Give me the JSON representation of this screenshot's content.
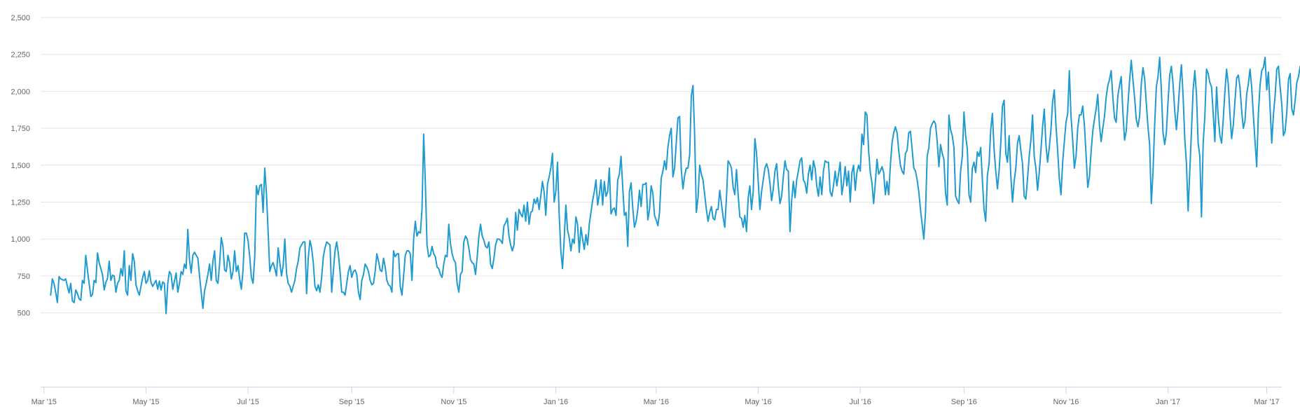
{
  "colors": {
    "series": "#1f9bcf",
    "grid": "#e6e6e6",
    "axis": "#ccd6eb",
    "label": "#666666"
  },
  "chart_data": {
    "type": "line",
    "title": "",
    "xlabel": "",
    "ylabel": "",
    "grid": true,
    "legend": "none",
    "ylim": [
      0,
      2500
    ],
    "y_ticks": [
      {
        "value": 500,
        "label": "500"
      },
      {
        "value": 750,
        "label": "750"
      },
      {
        "value": 1000,
        "label": "1,000"
      },
      {
        "value": 1250,
        "label": "1,250"
      },
      {
        "value": 1500,
        "label": "1,500"
      },
      {
        "value": 1750,
        "label": "1,750"
      },
      {
        "value": 2000,
        "label": "2,000"
      },
      {
        "value": 2250,
        "label": "2,250"
      },
      {
        "value": 2500,
        "label": "2,500"
      }
    ],
    "xlim": [
      "2015-02-27",
      "2017-03-10"
    ],
    "x_ticks": [
      {
        "date": "2015-03-01",
        "label": "Mar '15"
      },
      {
        "date": "2015-05-01",
        "label": "May '15"
      },
      {
        "date": "2015-07-01",
        "label": "Jul '15"
      },
      {
        "date": "2015-09-01",
        "label": "Sep '15"
      },
      {
        "date": "2015-11-01",
        "label": "Nov '15"
      },
      {
        "date": "2016-01-01",
        "label": "Jan '16"
      },
      {
        "date": "2016-03-01",
        "label": "Mar '16"
      },
      {
        "date": "2016-05-01",
        "label": "May '16"
      },
      {
        "date": "2016-07-01",
        "label": "Jul '16"
      },
      {
        "date": "2016-09-01",
        "label": "Sep '16"
      },
      {
        "date": "2016-11-01",
        "label": "Nov '16"
      },
      {
        "date": "2017-01-01",
        "label": "Jan '17"
      },
      {
        "date": "2017-03-01",
        "label": "Mar '17"
      }
    ],
    "series": [
      {
        "x_start": "2015-03-05",
        "x_step_days": 1,
        "values": [
          620,
          730,
          700,
          640,
          570,
          745,
          730,
          725,
          720,
          730,
          680,
          635,
          700,
          580,
          570,
          655,
          630,
          595,
          585,
          720,
          700,
          890,
          790,
          700,
          610,
          625,
          720,
          705,
          905,
          840,
          800,
          760,
          655,
          705,
          735,
          850,
          720,
          755,
          750,
          640,
          700,
          720,
          800,
          750,
          920,
          650,
          620,
          820,
          720,
          900,
          850,
          690,
          650,
          620,
          680,
          740,
          780,
          700,
          720,
          785,
          705,
          680,
          700,
          720,
          660,
          715,
          655,
          710,
          700,
          495,
          700,
          780,
          760,
          660,
          715,
          770,
          640,
          700,
          780,
          760,
          830,
          800,
          1065,
          860,
          770,
          890,
          910,
          890,
          870,
          750,
          640,
          530,
          650,
          700,
          760,
          830,
          720,
          850,
          920,
          720,
          700,
          830,
          1010,
          950,
          790,
          780,
          890,
          840,
          730,
          780,
          920,
          780,
          820,
          730,
          660,
          790,
          1040,
          1040,
          990,
          880,
          740,
          700,
          880,
          1360,
          1300,
          1360,
          1370,
          1180,
          1480,
          1310,
          1050,
          780,
          820,
          840,
          800,
          750,
          940,
          840,
          750,
          820,
          1000,
          770,
          700,
          680,
          640,
          680,
          720,
          800,
          850,
          940,
          960,
          980,
          980,
          630,
          870,
          990,
          940,
          840,
          680,
          650,
          690,
          640,
          740,
          880,
          940,
          980,
          970,
          960,
          640,
          780,
          920,
          980,
          900,
          780,
          640,
          640,
          620,
          700,
          780,
          820,
          740,
          780,
          790,
          760,
          640,
          590,
          720,
          760,
          830,
          810,
          780,
          720,
          690,
          700,
          780,
          900,
          850,
          790,
          780,
          870,
          810,
          720,
          690,
          680,
          640,
          920,
          880,
          900,
          900,
          680,
          620,
          750,
          890,
          920,
          920,
          900,
          720,
          1000,
          1120,
          1020,
          1050,
          1040,
          1200,
          1710,
          1380,
          960,
          880,
          890,
          950,
          900,
          880,
          810,
          800,
          760,
          740,
          830,
          890,
          880,
          1100,
          970,
          900,
          860,
          840,
          700,
          640,
          760,
          780,
          980,
          1020,
          1000,
          940,
          860,
          840,
          830,
          760,
          880,
          1020,
          1100,
          1020,
          990,
          950,
          940,
          980,
          830,
          800,
          870,
          960,
          1000,
          950,
          1000,
          1000,
          1100,
          1120,
          1060,
          980,
          890,
          990,
          1000,
          1060,
          1000,
          1060,
          1080,
          1090,
          1160,
          1220,
          1360,
          1250,
          1240,
          1120,
          1000,
          1020,
          960,
          1030,
          1090,
          1150,
          1020,
          920,
          840,
          740,
          860
        ]
      },
      {
        "x_start": "2015-11-28",
        "x_step_days": 1,
        "values": [
          1000,
          990,
          970,
          1090,
          1110,
          1140,
          1020,
          960,
          920,
          960,
          1180,
          1060,
          1200,
          1170,
          1150,
          1230,
          1120,
          1250,
          1100,
          1180,
          1190,
          1270,
          1240,
          1280,
          1200,
          1290,
          1390,
          1320,
          1160,
          1370,
          1420,
          1480,
          1580,
          1250,
          1320,
          1520,
          1170,
          920,
          800,
          1000,
          1230,
          1060,
          1010,
          920,
          1000,
          970,
          1150,
          1100,
          910,
          1080,
          1000,
          930,
          1030,
          960,
          1100,
          1180,
          1260,
          1320,
          1400,
          1230,
          1300,
          1400,
          1230,
          1390,
          1290,
          1320,
          1480,
          1170,
          1200,
          1210,
          1160,
          1400,
          1440,
          1560,
          1350,
          1160,
          1180,
          950,
          1320,
          1380,
          1210,
          1080,
          1120,
          1200,
          1330,
          1220,
          1370,
          1370,
          1380,
          1130,
          1200,
          1360,
          1310,
          1160,
          1130,
          1090,
          1180,
          1410,
          1460,
          1530,
          1470,
          1620,
          1700,
          1750,
          1420,
          1480,
          1650,
          1820,
          1830,
          1470,
          1340,
          1430,
          1480,
          1480,
          1570,
          1970,
          2040,
          1700,
          1180,
          1280,
          1500,
          1440,
          1400,
          1300,
          1200,
          1120,
          1180,
          1220,
          1140,
          1130,
          1200,
          1200,
          1330,
          1240,
          1150,
          1080,
          1280,
          1530,
          1510,
          1480,
          1350,
          1300,
          1470,
          1300,
          1150,
          1140,
          1080,
          1160,
          1050,
          1280,
          1360,
          1200,
          1320,
          1680,
          1580,
          1390,
          1200,
          1320,
          1400,
          1480,
          1510,
          1470,
          1380,
          1260,
          1340,
          1460,
          1510,
          1360,
          1240,
          1290,
          1420,
          1530,
          1470,
          1460,
          1050,
          1260,
          1390,
          1280,
          1400,
          1460,
          1530,
          1550,
          1400,
          1380,
          1310,
          1440,
          1500,
          1400,
          1530,
          1480,
          1360,
          1290,
          1420,
          1300,
          1460,
          1530,
          1520,
          1520,
          1320,
          1290,
          1360,
          1460,
          1360,
          1440,
          1520,
          1300,
          1380,
          1490,
          1360,
          1460,
          1250,
          1450,
          1500,
          1330,
          1450,
          1500,
          1460,
          1710,
          1640,
          1860,
          1840,
          1600,
          1450,
          1380,
          1240,
          1380,
          1540,
          1440,
          1460,
          1490,
          1450,
          1300,
          1390,
          1300,
          1500,
          1650,
          1720,
          1760,
          1720,
          1600,
          1500,
          1460,
          1440,
          1580,
          1600,
          1720,
          1730,
          1610,
          1480,
          1460,
          1400,
          1320,
          1200,
          1100,
          1000,
          1180,
          1560,
          1620,
          1750,
          1780,
          1800,
          1780,
          1660,
          1490,
          1640,
          1580,
          1540,
          1310,
          1230,
          1380,
          1520,
          1700,
          1670,
          1680,
          1620,
          1500,
          1560,
          1620,
          1700,
          1420,
          1380,
          1460,
          1800,
          1610,
          1400,
          1120,
          1200,
          1440,
          1540,
          1560,
          1760,
          1660,
          1500,
          1320,
          1290,
          1460,
          1520,
          1680,
          1820,
          1830
        ]
      },
      {
        "x_start": "2016-08-23",
        "x_step_days": 1,
        "values": [
          1840,
          1740,
          1700,
          1620,
          1290,
          1260,
          1240,
          1460,
          1560,
          1860,
          1700,
          1610,
          1300,
          1250,
          1480,
          1520,
          1450,
          1590,
          1560,
          1620,
          1400,
          1200,
          1120,
          1430,
          1510,
          1740,
          1850,
          1610,
          1460,
          1340,
          1460,
          1650,
          1900,
          1940,
          1580,
          1520,
          1700,
          1430,
          1250,
          1390,
          1480,
          1650,
          1700,
          1600,
          1510,
          1290,
          1270,
          1410,
          1560,
          1670,
          1840,
          1760,
          1650,
          1490,
          1350,
          1250,
          1400,
          1480,
          1680,
          1700,
          1640,
          1550,
          1390,
          1130,
          1330,
          1550,
          1710,
          1650,
          1640,
          1540,
          1250,
          1180,
          1460,
          1640,
          1810,
          1900,
          1690,
          1560,
          1510,
          1360,
          1260,
          1110,
          1280,
          1450,
          1500,
          1450,
          1030,
          1320,
          1520,
          1520,
          1520,
          1370,
          1280,
          1150,
          1240,
          1470,
          1530,
          1580,
          1660,
          1640,
          1540,
          1350,
          1220,
          1320,
          1410,
          1560,
          1710,
          1710,
          1590,
          1490,
          1420,
          1290,
          1400,
          1470,
          1660,
          1730,
          1780,
          1500,
          1350,
          1230,
          1300,
          1450,
          1630,
          1800,
          1770,
          1650,
          1580,
          1470,
          1390,
          1320,
          1450,
          1560,
          1730,
          1900,
          1880,
          1520,
          1480,
          1650,
          1760,
          1670,
          1560,
          1400,
          1240,
          1320,
          1600,
          1780,
          1810,
          1900,
          1860,
          1490,
          1410,
          1560,
          1620,
          2010,
          1660,
          1400,
          1350,
          1490,
          1610,
          1670
        ]
      },
      {
        "x_start": "2016-10-13",
        "x_step_days": 1,
        "values": [
          1560,
          1480,
          1330,
          1450,
          1600,
          1760,
          1880,
          1640,
          1520,
          1620,
          1740,
          1930,
          2010,
          1770,
          1600,
          1410,
          1300,
          1520,
          1660,
          1790,
          1850,
          2140,
          1830,
          1670,
          1480,
          1560,
          1750,
          1840,
          1840,
          1900,
          1770,
          1570,
          1350,
          1420,
          1590,
          1730,
          1810,
          1880,
          1980,
          1770,
          1660,
          1750,
          1830,
          1960,
          2040,
          2080,
          2140,
          1960,
          1820,
          1790,
          1970,
          2040,
          2100,
          1860,
          1670,
          1730,
          1910,
          2070,
          2210,
          2080,
          1960,
          1810,
          1760,
          1830,
          2050,
          2160,
          2090,
          1920,
          1760,
          1640,
          1240,
          1450,
          1770,
          2030,
          2100,
          2230,
          2010,
          1720,
          1640,
          1720,
          1930,
          2110,
          2170,
          2050,
          1870,
          1740,
          1880,
          2050,
          2180,
          1970,
          1680,
          1510,
          1190,
          1460,
          1730,
          2010,
          2140,
          1980,
          1650,
          1560,
          1150,
          1650,
          1830,
          2150,
          2120,
          2060,
          2030,
          1850,
          1660,
          1480,
          1520,
          1700,
          1970,
          2040,
          2010,
          1920,
          1700,
          1410,
          1420,
          1560,
          1750,
          1980,
          1900,
          1720,
          1560,
          1390,
          1360,
          1490,
          1730,
          1870,
          1990,
          2080,
          2090,
          1850,
          1580,
          1450,
          1650,
          1910,
          2030,
          2100,
          2130,
          1890,
          1650,
          1840,
          1970,
          2150,
          2170,
          2030,
          1910,
          1700,
          1730,
          1860,
          2080,
          2120,
          1880,
          1840,
          1940,
          2060,
          2100,
          2170
        ]
      },
      {
        "x_start": "2017-01-30",
        "x_step_days": 1,
        "values": [
          2030,
          1830,
          1700,
          1650,
          1810,
          2000,
          2150,
          2050,
          1850,
          1680,
          1770,
          1930,
          2090,
          2110,
          2030,
          1870,
          1750,
          1800,
          1980,
          2050,
          2150,
          2030,
          1840,
          1660,
          1490,
          1850,
          2040,
          2140,
          2160,
          2230,
          2010
        ]
      }
    ]
  }
}
